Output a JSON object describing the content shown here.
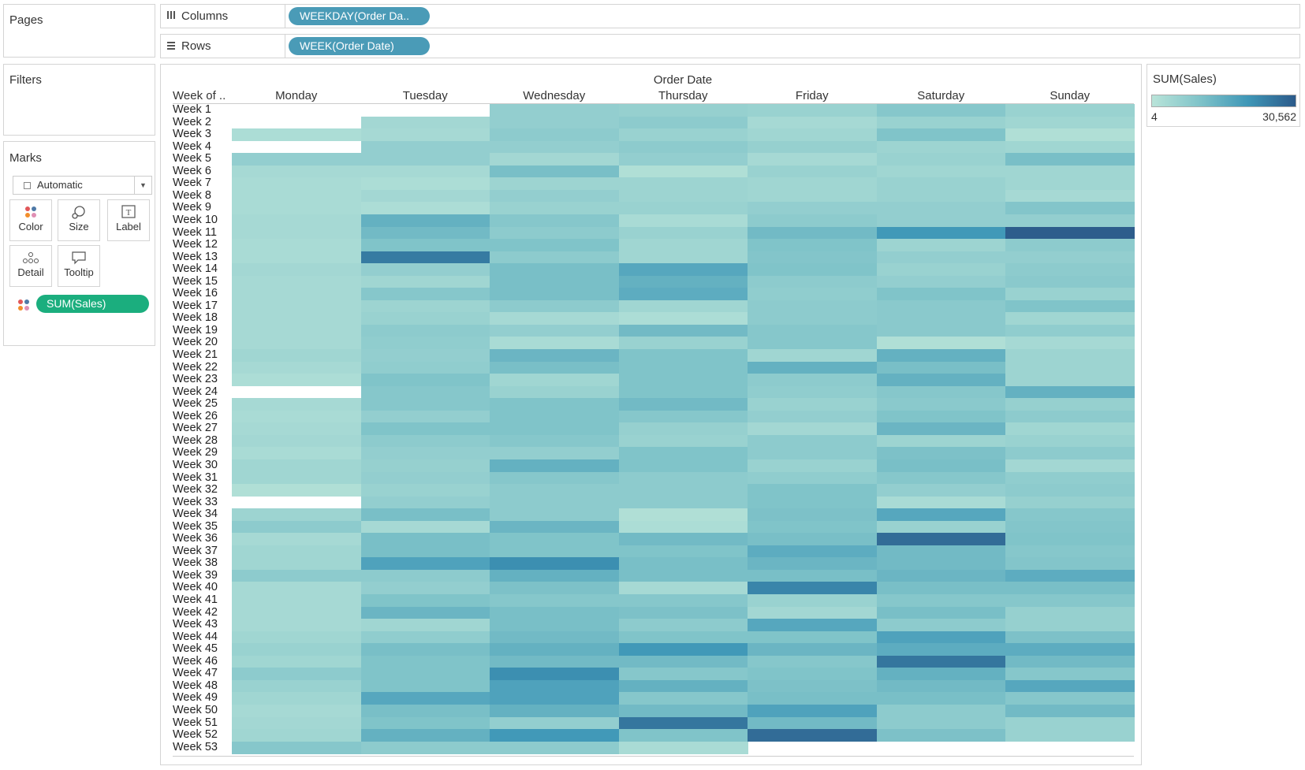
{
  "pages": {
    "title": "Pages"
  },
  "filters": {
    "title": "Filters"
  },
  "shelves": {
    "columns": {
      "label": "Columns",
      "pill": "WEEKDAY(Order Da.."
    },
    "rows": {
      "label": "Rows",
      "pill": "WEEK(Order Date)"
    }
  },
  "marks": {
    "title": "Marks",
    "type": "Automatic",
    "buttons": [
      "Color",
      "Size",
      "Label",
      "Detail",
      "Tooltip"
    ],
    "field_pill": "SUM(Sales)"
  },
  "legend": {
    "title": "SUM(Sales)",
    "min_label": "4",
    "max_label": "30,562"
  },
  "view": {
    "header_title": "Order Date",
    "row_header": "Week of ..",
    "days": [
      "Monday",
      "Tuesday",
      "Wednesday",
      "Thursday",
      "Friday",
      "Saturday",
      "Sunday"
    ]
  },
  "colors": {
    "low": "#b9e4d9",
    "mid": "#7fc3c9",
    "high": "#3f97b7",
    "max": "#2c5a8a",
    "pill_blue": "#4a9bb7",
    "pill_green": "#1bae7e"
  },
  "chart_data": {
    "type": "heatmap",
    "title": "Order Date",
    "x_categories": [
      "Monday",
      "Tuesday",
      "Wednesday",
      "Thursday",
      "Friday",
      "Saturday",
      "Sunday"
    ],
    "y_categories": [
      "Week 1",
      "Week 2",
      "Week 3",
      "Week 4",
      "Week 5",
      "Week 6",
      "Week 7",
      "Week 8",
      "Week 9",
      "Week 10",
      "Week 11",
      "Week 12",
      "Week 13",
      "Week 14",
      "Week 15",
      "Week 16",
      "Week 17",
      "Week 18",
      "Week 19",
      "Week 20",
      "Week 21",
      "Week 22",
      "Week 23",
      "Week 24",
      "Week 25",
      "Week 26",
      "Week 27",
      "Week 28",
      "Week 29",
      "Week 30",
      "Week 31",
      "Week 32",
      "Week 33",
      "Week 34",
      "Week 35",
      "Week 36",
      "Week 37",
      "Week 38",
      "Week 39",
      "Week 40",
      "Week 41",
      "Week 42",
      "Week 43",
      "Week 44",
      "Week 45",
      "Week 46",
      "Week 47",
      "Week 48",
      "Week 49",
      "Week 50",
      "Week 51",
      "Week 52",
      "Week 53"
    ],
    "color_measure": "SUM(Sales)",
    "color_range": [
      4,
      30562
    ],
    "values": [
      [
        null,
        null,
        6000,
        5500,
        5000,
        8000,
        5000
      ],
      [
        null,
        3500,
        6000,
        7000,
        3000,
        5000,
        4000
      ],
      [
        2000,
        3000,
        7000,
        5000,
        4000,
        9000,
        1500
      ],
      [
        null,
        6000,
        6000,
        7000,
        5500,
        4500,
        4000
      ],
      [
        6000,
        6000,
        3500,
        6000,
        3000,
        5000,
        10000
      ],
      [
        3000,
        3000,
        10000,
        1500,
        5000,
        4000,
        4000
      ],
      [
        2500,
        2000,
        4500,
        4500,
        4000,
        5000,
        4000
      ],
      [
        2500,
        3500,
        6000,
        4500,
        4000,
        5000,
        3000
      ],
      [
        2500,
        2000,
        5000,
        5000,
        6000,
        6000,
        8500
      ],
      [
        3000,
        13000,
        8000,
        2500,
        7000,
        6000,
        6000
      ],
      [
        3000,
        11000,
        7000,
        5000,
        11000,
        18000,
        30000
      ],
      [
        2500,
        9000,
        9000,
        4000,
        9000,
        4500,
        7000
      ],
      [
        2500,
        24000,
        7000,
        4000,
        8500,
        6000,
        6000
      ],
      [
        3500,
        6000,
        10000,
        15000,
        9000,
        5000,
        7000
      ],
      [
        3000,
        4000,
        10000,
        13000,
        7000,
        6000,
        7500
      ],
      [
        3000,
        8000,
        10000,
        14000,
        6500,
        9000,
        5000
      ],
      [
        3000,
        4500,
        7000,
        4000,
        7000,
        7500,
        9000
      ],
      [
        3000,
        5000,
        3000,
        2000,
        7000,
        7500,
        4000
      ],
      [
        3000,
        7000,
        6000,
        11000,
        8000,
        7500,
        6500
      ],
      [
        3000,
        6500,
        2500,
        5000,
        8000,
        1500,
        3000
      ],
      [
        4000,
        6000,
        12000,
        9000,
        4000,
        13000,
        4500
      ],
      [
        3000,
        6500,
        10000,
        9000,
        13000,
        10000,
        4500
      ],
      [
        2000,
        9000,
        4000,
        9000,
        7000,
        13000,
        4500
      ],
      [
        null,
        8000,
        5000,
        9000,
        6500,
        8000,
        13000
      ],
      [
        3000,
        8000,
        9000,
        11000,
        5000,
        7500,
        5500
      ],
      [
        2500,
        6000,
        9000,
        8000,
        6000,
        9000,
        7000
      ],
      [
        3000,
        9000,
        9000,
        5500,
        3500,
        12000,
        4000
      ],
      [
        3500,
        7000,
        8000,
        5000,
        7000,
        4500,
        5000
      ],
      [
        2500,
        6000,
        6000,
        9000,
        7000,
        9500,
        7000
      ],
      [
        4000,
        5500,
        13000,
        9000,
        5000,
        10000,
        3500
      ],
      [
        4000,
        6000,
        8000,
        7000,
        6500,
        8000,
        6500
      ],
      [
        1500,
        5000,
        7000,
        7000,
        9000,
        6000,
        7000
      ],
      [
        null,
        6000,
        7000,
        7000,
        9000,
        2500,
        5500
      ],
      [
        4500,
        10000,
        7000,
        1500,
        9500,
        15000,
        8000
      ],
      [
        7000,
        3000,
        12000,
        2000,
        9000,
        5000,
        8500
      ],
      [
        3000,
        10000,
        9000,
        11000,
        10000,
        27000,
        9000
      ],
      [
        4000,
        10000,
        9000,
        9000,
        14000,
        11000,
        8000
      ],
      [
        4000,
        16000,
        20000,
        10000,
        12000,
        11000,
        8500
      ],
      [
        7000,
        7000,
        13000,
        10000,
        10000,
        12000,
        14000
      ],
      [
        3000,
        6000,
        9500,
        3000,
        22000,
        10000,
        10000
      ],
      [
        3000,
        9000,
        8000,
        8000,
        5000,
        8000,
        8000
      ],
      [
        3000,
        12000,
        10000,
        9500,
        3500,
        10000,
        5500
      ],
      [
        3000,
        4000,
        10000,
        7000,
        15000,
        7000,
        5500
      ],
      [
        4000,
        6500,
        11000,
        9000,
        9000,
        16000,
        9500
      ],
      [
        5000,
        10000,
        13000,
        18000,
        12000,
        14000,
        14000
      ],
      [
        4000,
        9000,
        11000,
        11000,
        8000,
        25000,
        11000
      ],
      [
        7000,
        9000,
        20000,
        8000,
        9000,
        13000,
        8000
      ],
      [
        5000,
        9000,
        16000,
        13000,
        9500,
        11000,
        15000
      ],
      [
        4000,
        15000,
        16000,
        8000,
        10000,
        10000,
        8000
      ],
      [
        3000,
        10000,
        13000,
        11000,
        16000,
        7000,
        11000
      ],
      [
        3500,
        9000,
        6000,
        25000,
        11000,
        7000,
        5000
      ],
      [
        4000,
        13000,
        18000,
        9000,
        27000,
        9500,
        5000
      ],
      [
        8000,
        7000,
        7000,
        2500,
        null,
        null,
        null
      ]
    ]
  }
}
